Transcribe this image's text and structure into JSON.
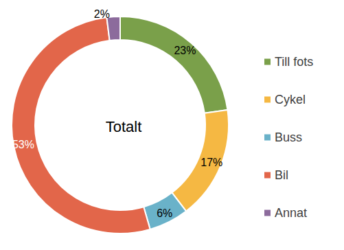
{
  "chart_data": {
    "type": "pie",
    "title": "Totalt",
    "categories": [
      "Till fots",
      "Cykel",
      "Buss",
      "Bil",
      "Annat"
    ],
    "values": [
      23,
      17,
      6,
      53,
      2
    ],
    "value_labels": [
      "23%",
      "17%",
      "6%",
      "53%",
      "2%"
    ],
    "colors": [
      "#7aa04a",
      "#f5b843",
      "#6ab2c9",
      "#e2664a",
      "#8c6b9c"
    ],
    "data_labels": true,
    "legend": "right"
  }
}
